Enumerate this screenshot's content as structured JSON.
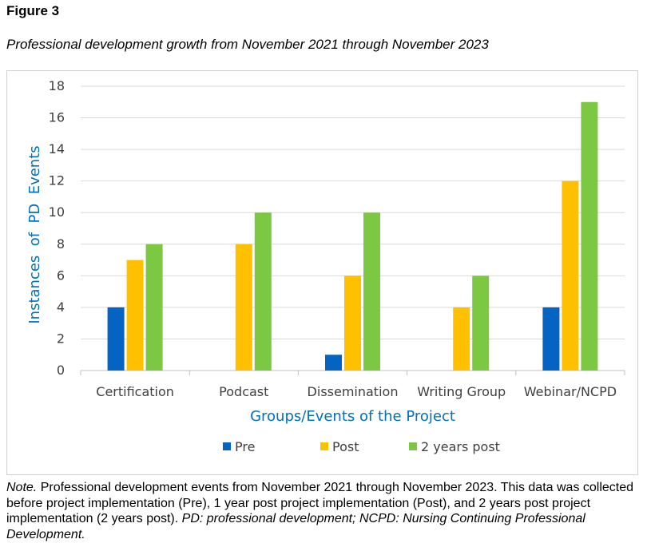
{
  "figure": {
    "label": "Figure 3",
    "caption": "Professional development growth from November 2021 through November 2023"
  },
  "chart_data": {
    "type": "bar",
    "title": "",
    "xlabel": "Groups/Events of the Project",
    "ylabel": "Instances  of  PD  Events",
    "ylim": [
      0,
      18
    ],
    "yticks": [
      0,
      2,
      4,
      6,
      8,
      10,
      12,
      14,
      16,
      18
    ],
    "grid": true,
    "legend_position": "bottom",
    "categories": [
      "Certification",
      "Podcast",
      "Dissemination",
      "Writing Group",
      "Webinar/NCPD"
    ],
    "series": [
      {
        "name": "Pre",
        "color": "#0563c1",
        "values": [
          4,
          0,
          1,
          0,
          4
        ]
      },
      {
        "name": "Post",
        "color": "#ffc000",
        "values": [
          7,
          8,
          6,
          4,
          12
        ]
      },
      {
        "name": "2 years post",
        "color": "#7dc843",
        "values": [
          8,
          10,
          10,
          6,
          17
        ]
      }
    ]
  },
  "note": {
    "label": "Note.",
    "text": " Professional development events from November 2021 through November 2023. This data was collected before project implementation (Pre), 1 year post project implementation (Post), and 2 years post project implementation (2 years post). ",
    "italic_text": "PD: professional development; NCPD: Nursing Continuing Professional Development."
  }
}
